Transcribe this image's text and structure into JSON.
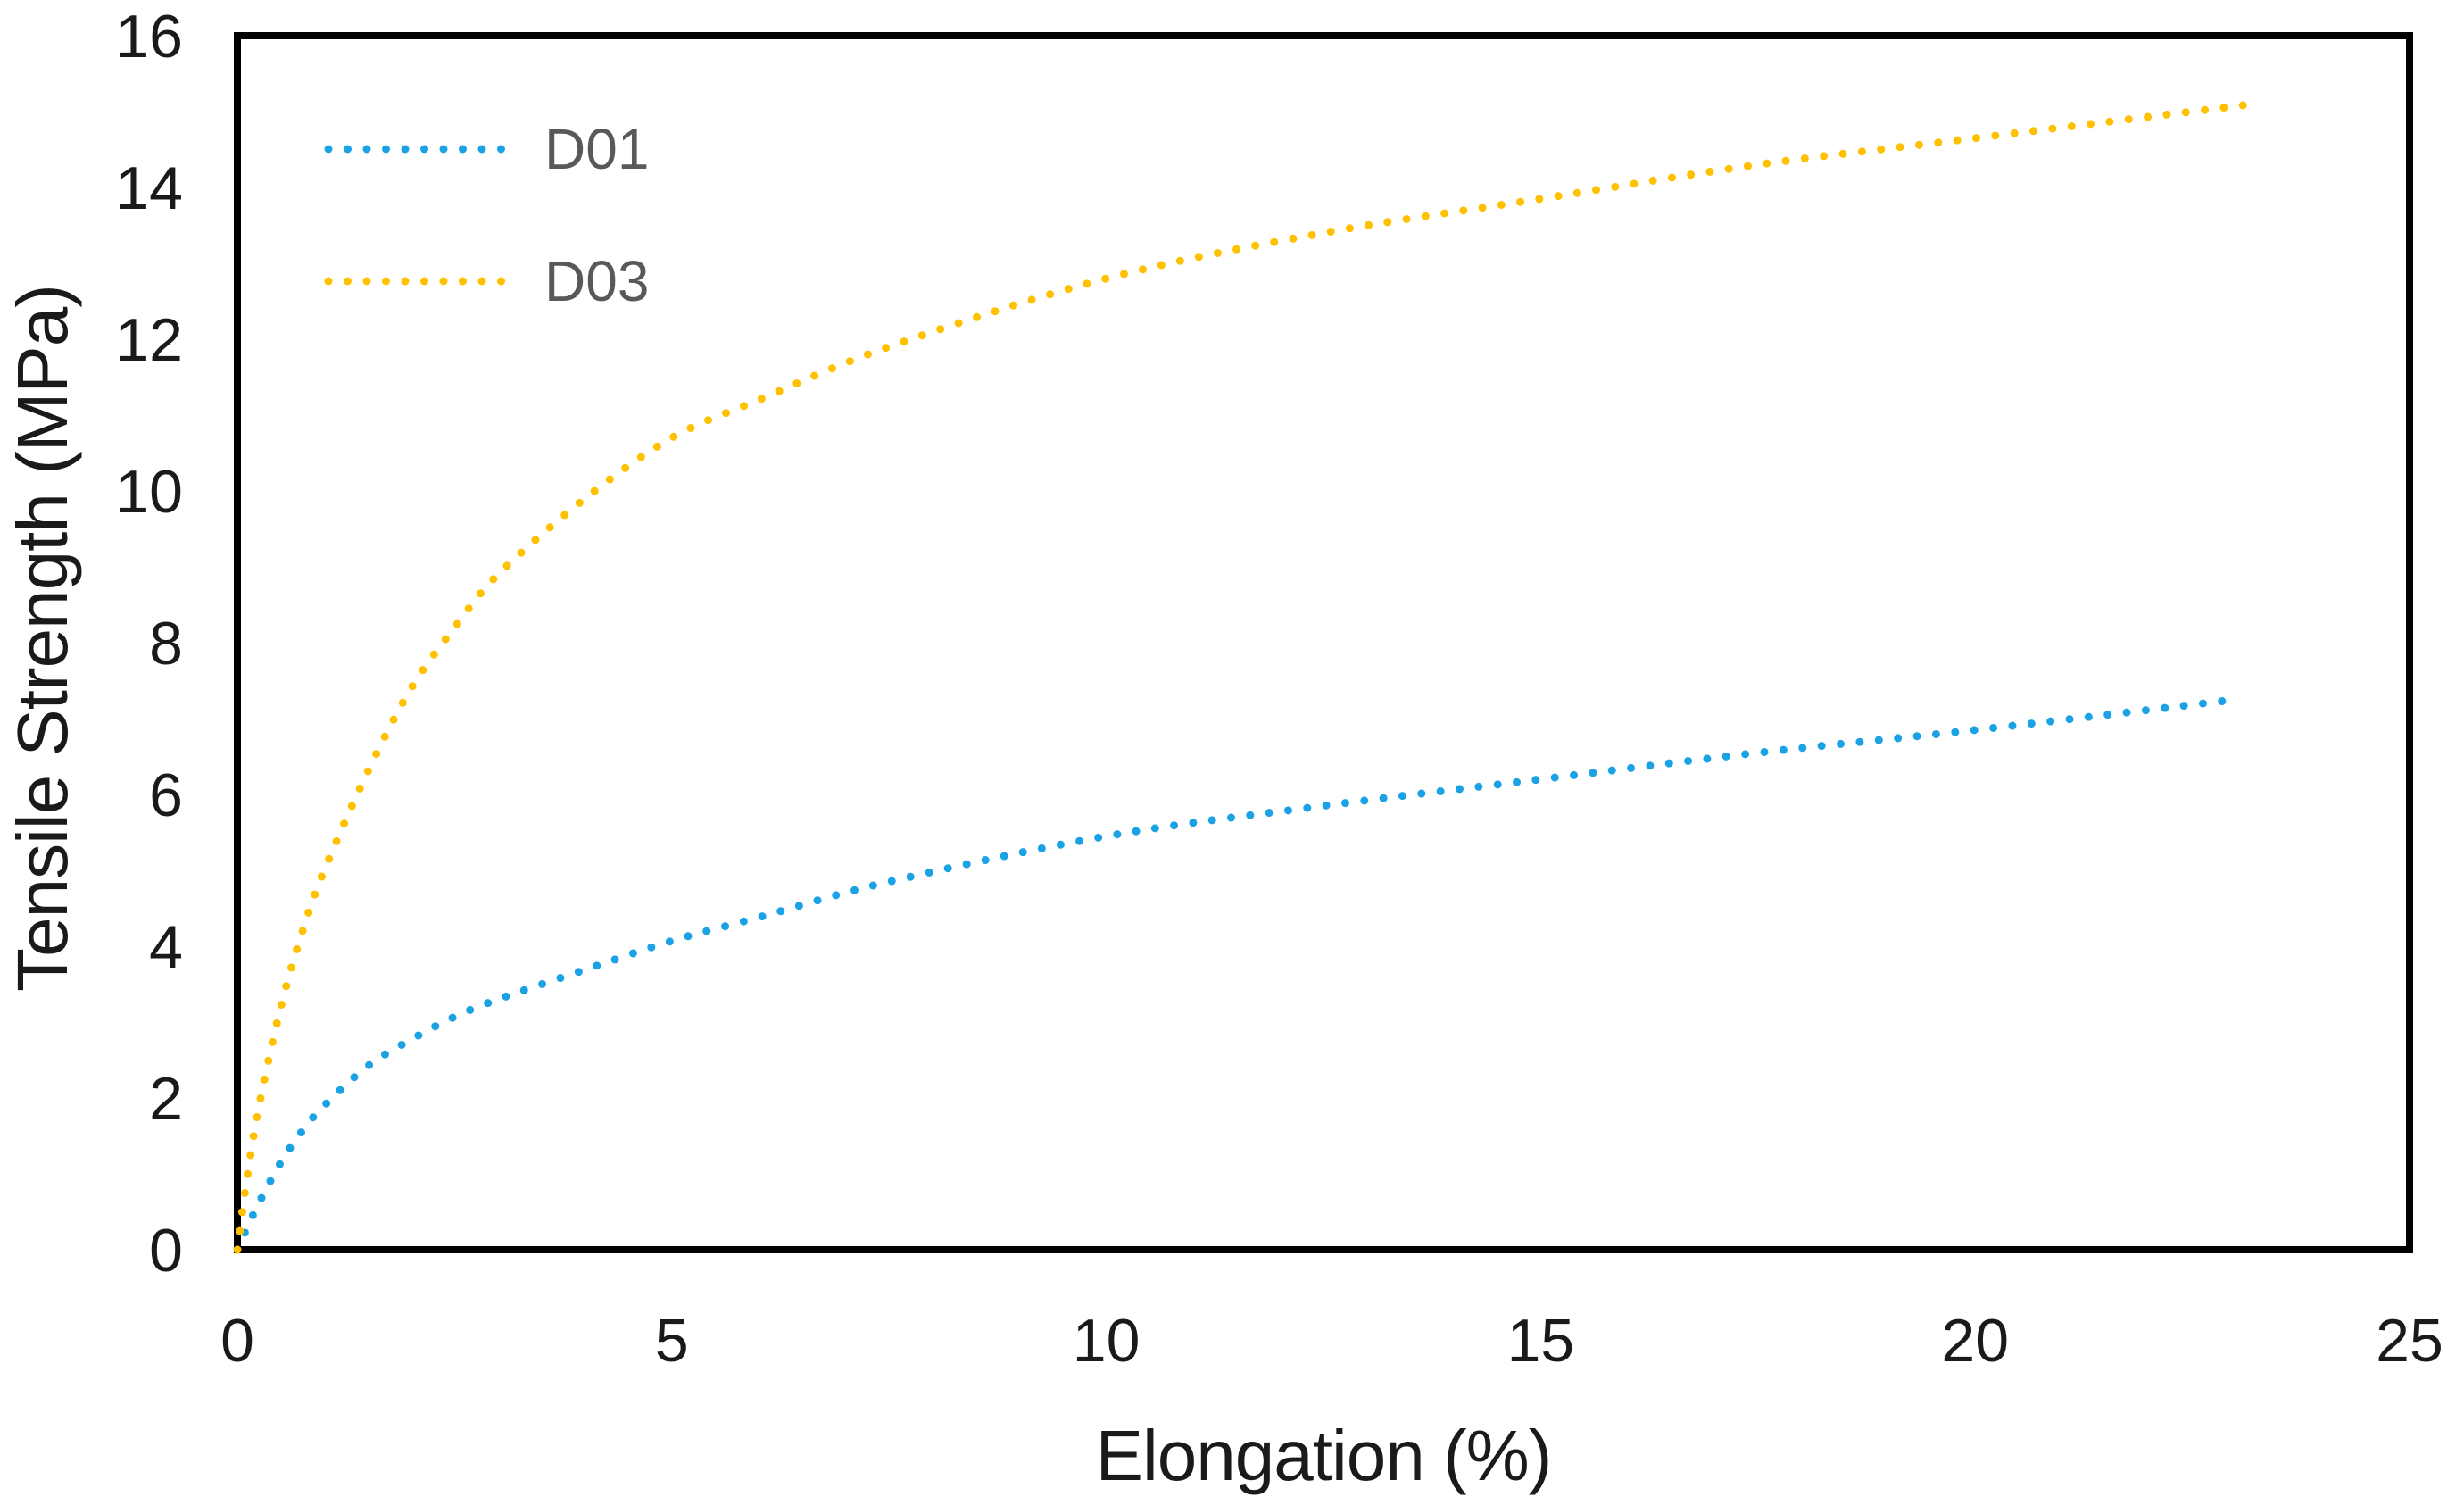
{
  "figure": {
    "background": "#ffffff",
    "border_color": "#000000",
    "tick_text_color": "#1a1a1a",
    "axis_title_color": "#1a1a1a",
    "legend_text_color": "#595959"
  },
  "chart_data": {
    "type": "scatter",
    "subtype": "dotted-curves",
    "title": "",
    "xlabel": "Elongation (%)",
    "ylabel": "Tensile Strength (MPa)",
    "xlim": [
      0,
      25
    ],
    "ylim": [
      0,
      16
    ],
    "x_ticks": [
      0,
      5,
      10,
      15,
      20,
      25
    ],
    "y_ticks": [
      0,
      2,
      4,
      6,
      8,
      10,
      12,
      14,
      16
    ],
    "grid": false,
    "legend_position": "top-left-inside",
    "marker_style": "dotted",
    "series": [
      {
        "name": "D01",
        "color": "#1BA2E5",
        "x": [
          0,
          0.1,
          0.25,
          0.5,
          0.75,
          1,
          1.5,
          2,
          2.5,
          3,
          4,
          5,
          6,
          7.5,
          10,
          12.5,
          15,
          17.5,
          20,
          23
        ],
        "y": [
          0,
          0.26,
          0.62,
          1.15,
          1.57,
          1.9,
          2.42,
          2.77,
          3.07,
          3.3,
          3.69,
          4.07,
          4.38,
          4.85,
          5.45,
          5.85,
          6.2,
          6.55,
          6.85,
          7.25
        ]
      },
      {
        "name": "D03",
        "color": "#FFC000",
        "x": [
          0,
          0.1,
          0.25,
          0.5,
          0.75,
          1,
          1.5,
          2,
          2.5,
          3,
          4,
          5,
          6,
          7.5,
          10,
          12.5,
          15,
          17.5,
          20,
          23.2
        ],
        "y": [
          0,
          0.86,
          1.9,
          3.2,
          4.2,
          5.0,
          6.3,
          7.4,
          8.2,
          8.9,
          9.9,
          10.7,
          11.2,
          11.9,
          12.8,
          13.4,
          13.85,
          14.3,
          14.65,
          15.1
        ]
      }
    ]
  }
}
